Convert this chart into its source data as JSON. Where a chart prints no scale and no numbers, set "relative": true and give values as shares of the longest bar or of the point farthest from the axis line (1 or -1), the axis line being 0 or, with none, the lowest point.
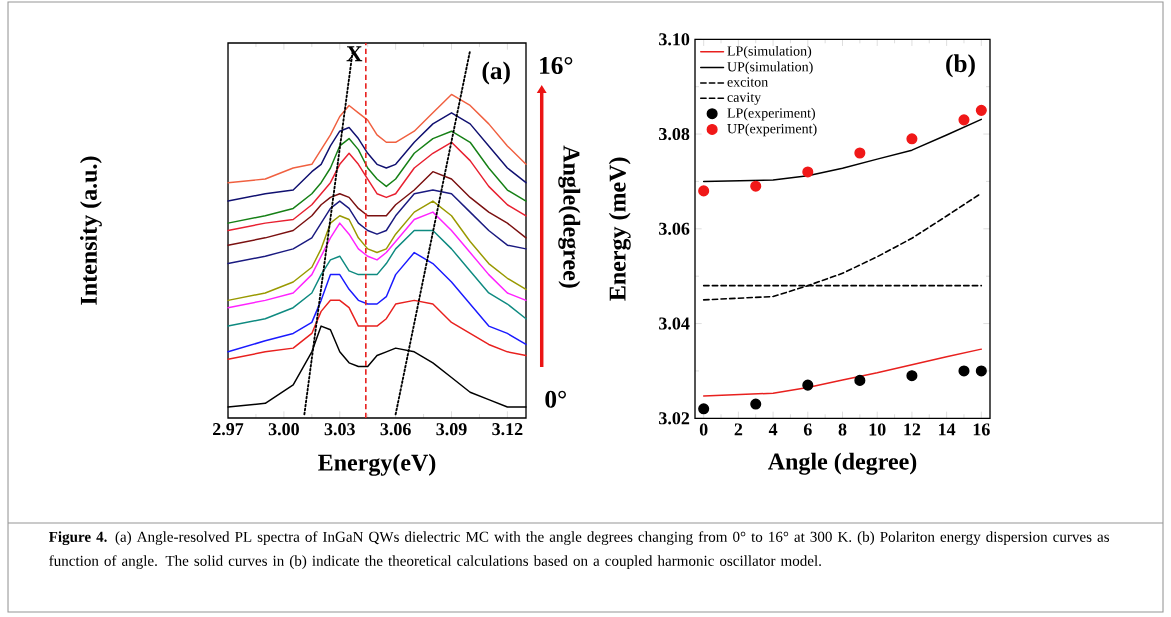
{
  "chart_data": [
    {
      "type": "line",
      "xlabel": "Energy(eV)",
      "ylabel": "Intensity (a.u.)",
      "y2label": "Angle(degree)",
      "relative": true,
      "tick_labels": "x",
      "x": [
        2.97,
        2.99,
        3.005,
        3.015,
        3.02,
        3.025,
        3.03,
        3.035,
        3.04,
        3.045,
        3.05,
        3.055,
        3.06,
        3.07,
        3.08,
        3.09,
        3.1,
        3.11,
        3.12,
        3.13
      ],
      "xlim": [
        2.97,
        3.13
      ],
      "xticks": [
        2.97,
        {
          "value": 3.0,
          "label": "3.00"
        },
        3.03,
        3.06,
        3.09,
        3.12
      ],
      "ref_lines": [
        {
          "axis": "x",
          "value": 3.044,
          "label": "X",
          "color": "#e8201e",
          "line_style": "dashed"
        }
      ],
      "annotations": [
        "(a)",
        "16°",
        "0°",
        "**Figure 4.** (a) Angle-resolved PL spectra of InGaN QWs dielectric MC with the angle degrees changing from 0° to 16° at 300 K. (b) Polariton energy dispersion curves as function of angle. The solid curves in (b) indicate the theoretical calculations based on a coupled harmonic oscillator model."
      ],
      "series": [
        {
          "color": "#000000",
          "values": [
            0.03,
            0.04,
            0.09,
            0.18,
            0.25,
            0.24,
            0.18,
            0.15,
            0.14,
            0.14,
            0.17,
            0.18,
            0.19,
            0.18,
            0.15,
            0.11,
            0.07,
            0.05,
            0.03,
            0.03
          ]
        },
        {
          "color": "#e8201e",
          "values": [
            0.16,
            0.18,
            0.19,
            0.23,
            0.29,
            0.32,
            0.32,
            0.3,
            0.25,
            0.25,
            0.25,
            0.27,
            0.31,
            0.32,
            0.31,
            0.26,
            0.23,
            0.2,
            0.18,
            0.17
          ]
        },
        {
          "color": "#1a1aff",
          "values": [
            0.18,
            0.21,
            0.23,
            0.26,
            0.32,
            0.39,
            0.39,
            0.35,
            0.32,
            0.31,
            0.31,
            0.33,
            0.39,
            0.45,
            0.42,
            0.37,
            0.31,
            0.25,
            0.23,
            0.2
          ]
        },
        {
          "color": "#0e8a80",
          "values": [
            0.25,
            0.27,
            0.3,
            0.34,
            0.39,
            0.43,
            0.44,
            0.4,
            0.39,
            0.39,
            0.39,
            0.42,
            0.46,
            0.51,
            0.51,
            0.46,
            0.4,
            0.34,
            0.31,
            0.27
          ]
        },
        {
          "color": "#ff22ff",
          "values": [
            0.3,
            0.32,
            0.34,
            0.39,
            0.44,
            0.49,
            0.53,
            0.5,
            0.46,
            0.44,
            0.43,
            0.45,
            0.48,
            0.54,
            0.56,
            0.51,
            0.45,
            0.39,
            0.34,
            0.32
          ]
        },
        {
          "color": "#999900",
          "values": [
            0.32,
            0.34,
            0.37,
            0.41,
            0.46,
            0.53,
            0.55,
            0.54,
            0.49,
            0.46,
            0.45,
            0.46,
            0.5,
            0.56,
            0.59,
            0.55,
            0.48,
            0.42,
            0.38,
            0.35
          ]
        },
        {
          "color": "#1a1a80",
          "values": [
            0.42,
            0.44,
            0.46,
            0.49,
            0.53,
            0.57,
            0.59,
            0.57,
            0.53,
            0.51,
            0.5,
            0.51,
            0.55,
            0.61,
            0.62,
            0.61,
            0.56,
            0.51,
            0.47,
            0.46
          ]
        },
        {
          "color": "#7a1010",
          "values": [
            0.47,
            0.49,
            0.51,
            0.55,
            0.58,
            0.6,
            0.61,
            0.6,
            0.57,
            0.55,
            0.55,
            0.55,
            0.58,
            0.62,
            0.67,
            0.65,
            0.6,
            0.56,
            0.53,
            0.49
          ]
        },
        {
          "color": "#e82030",
          "values": [
            0.51,
            0.53,
            0.54,
            0.58,
            0.61,
            0.64,
            0.69,
            0.72,
            0.69,
            0.65,
            0.61,
            0.6,
            0.61,
            0.68,
            0.72,
            0.75,
            0.7,
            0.63,
            0.58,
            0.55
          ]
        },
        {
          "color": "#168016",
          "values": [
            0.53,
            0.55,
            0.57,
            0.61,
            0.64,
            0.68,
            0.74,
            0.76,
            0.73,
            0.68,
            0.65,
            0.63,
            0.65,
            0.72,
            0.76,
            0.78,
            0.75,
            0.68,
            0.62,
            0.59
          ]
        },
        {
          "color": "#101070",
          "values": [
            0.59,
            0.61,
            0.62,
            0.67,
            0.69,
            0.74,
            0.78,
            0.79,
            0.76,
            0.72,
            0.69,
            0.68,
            0.69,
            0.75,
            0.8,
            0.83,
            0.8,
            0.74,
            0.68,
            0.64
          ]
        },
        {
          "color": "#f06040",
          "values": [
            0.64,
            0.65,
            0.68,
            0.69,
            0.73,
            0.77,
            0.82,
            0.85,
            0.83,
            0.81,
            0.77,
            0.75,
            0.75,
            0.78,
            0.83,
            0.88,
            0.85,
            0.8,
            0.74,
            0.69
          ]
        },
        {
          "color": "#000000",
          "line_style": "dotted",
          "x": [
            3.011,
            3.037
          ],
          "values": [
            0.01,
            1.0
          ]
        },
        {
          "color": "#000000",
          "line_style": "dotted",
          "x": [
            3.06,
            3.1
          ],
          "values": [
            0.01,
            1.0
          ]
        }
      ]
    },
    {
      "type": "line",
      "xlabel": "Angle (degree)",
      "ylabel": "Energy (meV)",
      "legend": "top left",
      "annotations": [
        "(b)"
      ],
      "xlim": [
        -0.5,
        16.5
      ],
      "xticks": [
        0,
        2,
        4,
        6,
        8,
        10,
        12,
        14,
        16
      ],
      "ylim": [
        3.02,
        3.1
      ],
      "yticks": [
        3.02,
        3.04,
        3.06,
        3.08,
        {
          "value": 3.1,
          "label": "3.10"
        }
      ],
      "series": [
        {
          "name": "LP(simulation)",
          "color": "#e8201e",
          "x": [
            0,
            4,
            6,
            8,
            10,
            12,
            14,
            16
          ],
          "values": [
            3.0247,
            3.0253,
            3.0265,
            3.0281,
            3.0296,
            3.0313,
            3.033,
            3.0346
          ]
        },
        {
          "name": "UP(simulation)",
          "color": "#000000",
          "x": [
            0,
            4,
            6,
            8,
            10,
            12,
            14,
            16
          ],
          "values": [
            3.07,
            3.0703,
            3.0712,
            3.0728,
            3.0747,
            3.0766,
            3.0798,
            3.0831
          ]
        },
        {
          "name": "exciton",
          "color": "#000000",
          "line_style": "dashed",
          "x": [
            0,
            16
          ],
          "values": [
            3.048,
            3.048
          ]
        },
        {
          "name": "cavity",
          "color": "#000000",
          "line_style": "dashed",
          "x": [
            0,
            4,
            6,
            8,
            10,
            12,
            14,
            16
          ],
          "values": [
            3.045,
            3.0457,
            3.048,
            3.0506,
            3.0541,
            3.058,
            3.0627,
            3.0675
          ]
        },
        {
          "name": "LP(experiment)",
          "type": "scatter",
          "marker": "circle",
          "color": "#000000",
          "x": [
            0,
            3,
            6,
            9,
            12,
            15,
            16
          ],
          "values": [
            3.022,
            3.023,
            3.027,
            3.028,
            3.029,
            3.03,
            3.03
          ]
        },
        {
          "name": "UP(experiment)",
          "type": "scatter",
          "marker": "circle",
          "color": "#f01818",
          "x": [
            0,
            3,
            6,
            9,
            12,
            15,
            16
          ],
          "values": [
            3.068,
            3.069,
            3.072,
            3.076,
            3.079,
            3.083,
            3.085
          ]
        }
      ]
    }
  ]
}
